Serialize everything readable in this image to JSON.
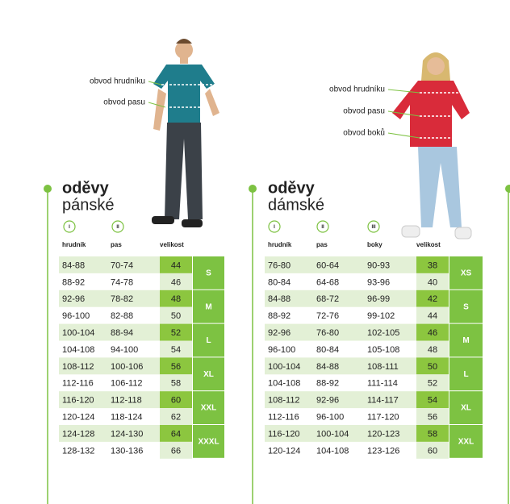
{
  "men": {
    "title": "oděvy",
    "subtitle": "pánské",
    "callouts": [
      "obvod hrudníku",
      "obvod pasu"
    ],
    "markers": [
      "I",
      "II"
    ],
    "headers": [
      "hrudník",
      "pas",
      "velikost"
    ],
    "rows": [
      [
        "84-88",
        "70-74",
        "44"
      ],
      [
        "88-92",
        "74-78",
        "46"
      ],
      [
        "92-96",
        "78-82",
        "48"
      ],
      [
        "96-100",
        "82-88",
        "50"
      ],
      [
        "100-104",
        "88-94",
        "52"
      ],
      [
        "104-108",
        "94-100",
        "54"
      ],
      [
        "108-112",
        "100-106",
        "56"
      ],
      [
        "112-116",
        "106-112",
        "58"
      ],
      [
        "116-120",
        "112-118",
        "60"
      ],
      [
        "120-124",
        "118-124",
        "62"
      ],
      [
        "124-128",
        "124-130",
        "64"
      ],
      [
        "128-132",
        "130-136",
        "66"
      ]
    ],
    "sizes": [
      "S",
      "M",
      "L",
      "XL",
      "XXL",
      "XXXL"
    ]
  },
  "women": {
    "title": "oděvy",
    "subtitle": "dámské",
    "callouts": [
      "obvod hrudníku",
      "obvod pasu",
      "obvod boků"
    ],
    "markers": [
      "I",
      "II",
      "III"
    ],
    "headers": [
      "hrudník",
      "pas",
      "boky",
      "velikost"
    ],
    "rows": [
      [
        "76-80",
        "60-64",
        "90-93",
        "38"
      ],
      [
        "80-84",
        "64-68",
        "93-96",
        "40"
      ],
      [
        "84-88",
        "68-72",
        "96-99",
        "42"
      ],
      [
        "88-92",
        "72-76",
        "99-102",
        "44"
      ],
      [
        "92-96",
        "76-80",
        "102-105",
        "46"
      ],
      [
        "96-100",
        "80-84",
        "105-108",
        "48"
      ],
      [
        "100-104",
        "84-88",
        "108-111",
        "50"
      ],
      [
        "104-108",
        "88-92",
        "111-114",
        "52"
      ],
      [
        "108-112",
        "92-96",
        "114-117",
        "54"
      ],
      [
        "112-116",
        "96-100",
        "117-120",
        "56"
      ],
      [
        "116-120",
        "100-104",
        "120-123",
        "58"
      ],
      [
        "120-124",
        "104-108",
        "123-126",
        "60"
      ]
    ],
    "sizes": [
      "XS",
      "S",
      "M",
      "L",
      "XL",
      "XXL"
    ]
  }
}
